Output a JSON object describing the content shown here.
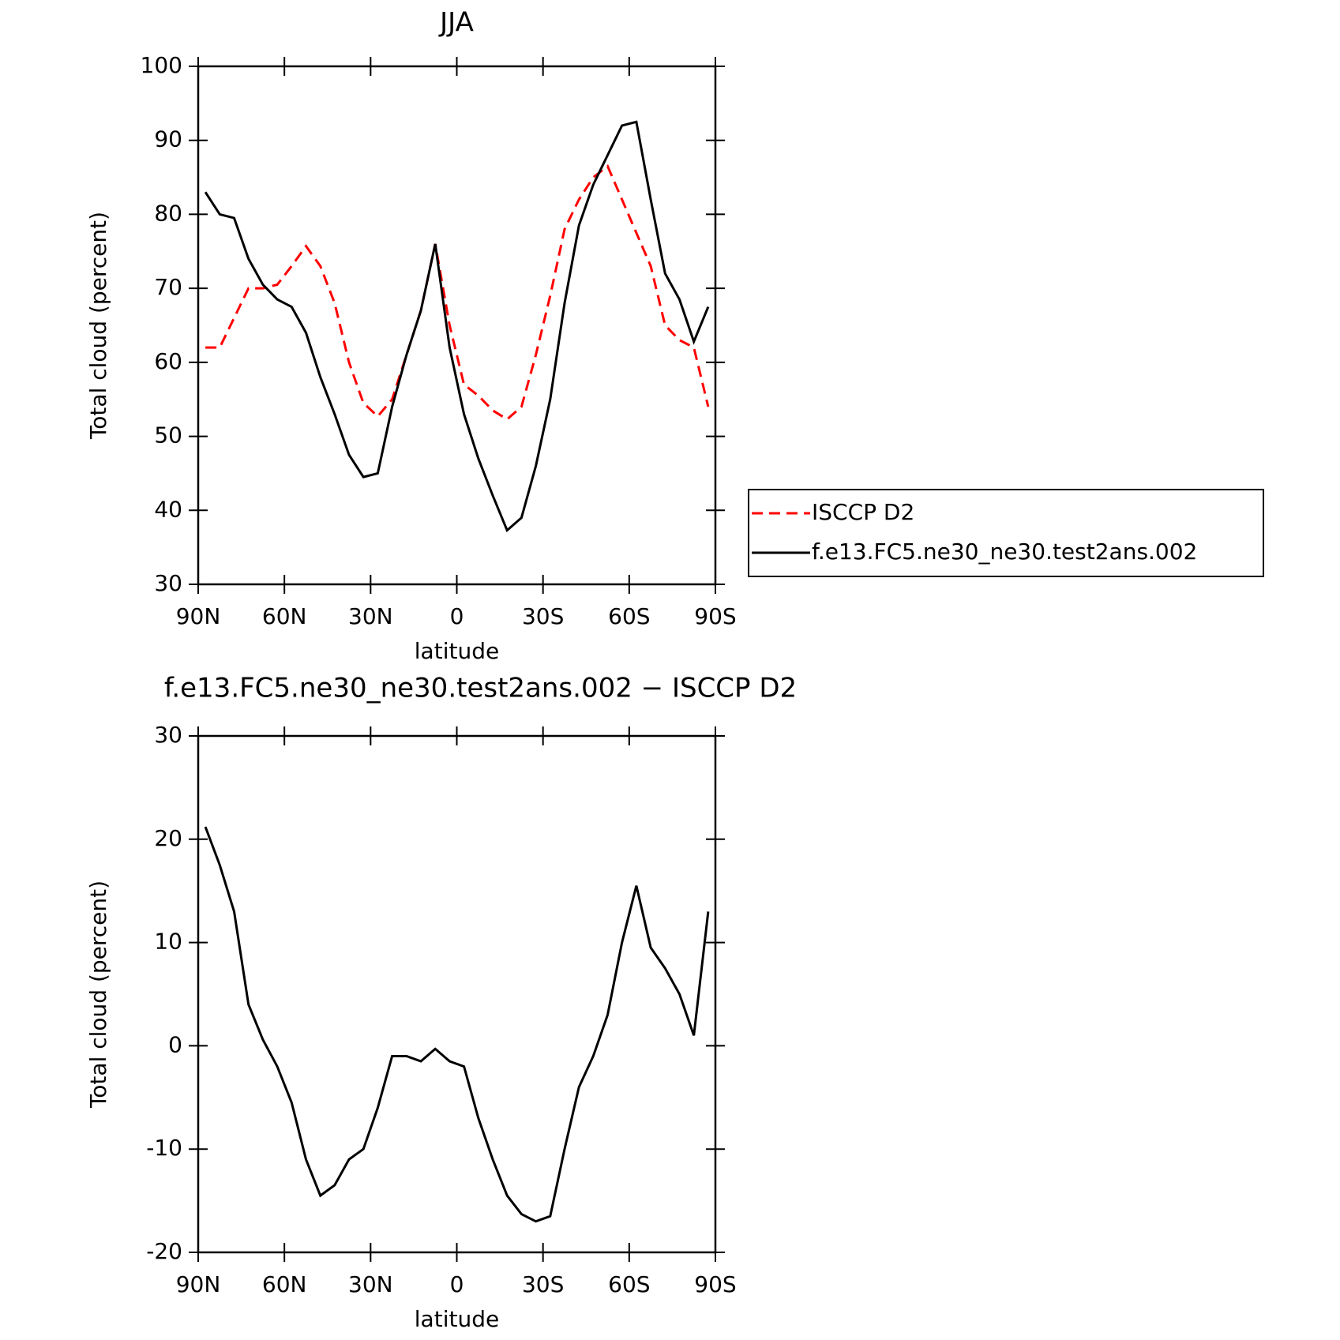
{
  "chart_data": [
    {
      "type": "line",
      "title": "JJA",
      "xlabel": "latitude",
      "ylabel": "Total cloud (percent)",
      "x": [
        87.5,
        82.5,
        77.5,
        72.5,
        67.5,
        62.5,
        57.5,
        52.5,
        47.5,
        42.5,
        37.5,
        32.5,
        27.5,
        22.5,
        17.5,
        12.5,
        7.5,
        2.5,
        -2.5,
        -7.5,
        -12.5,
        -17.5,
        -22.5,
        -27.5,
        -32.5,
        -37.5,
        -42.5,
        -47.5,
        -52.5,
        -57.5,
        -62.5,
        -67.5,
        -72.5,
        -77.5,
        -82.5,
        -87.5
      ],
      "xlim": [
        90,
        -90
      ],
      "xticks": [
        {
          "value": 90,
          "label": "90N"
        },
        {
          "value": 60,
          "label": "60N"
        },
        {
          "value": 30,
          "label": "30N"
        },
        0,
        {
          "value": -30,
          "label": "30S"
        },
        {
          "value": -60,
          "label": "60S"
        },
        {
          "value": -90,
          "label": "90S"
        }
      ],
      "ylim": [
        30,
        100
      ],
      "yticks": [
        30,
        40,
        50,
        60,
        70,
        80,
        90,
        100
      ],
      "legend": "right",
      "series": [
        {
          "name": "ISCCP D2",
          "color": "#ff0000",
          "line_style": "dashed",
          "values": [
            62,
            62,
            66,
            70,
            70,
            70.5,
            73,
            75.7,
            73,
            68,
            60,
            54.5,
            52.7,
            55,
            61,
            67,
            76,
            65,
            57,
            55.5,
            53.5,
            52.3,
            54,
            61,
            69,
            78,
            82,
            85,
            86.5,
            82,
            77.5,
            73,
            65,
            63,
            62,
            54
          ]
        },
        {
          "name": "f.e13.FC5.ne30_ne30.test2ans.002",
          "color": "#000000",
          "line_style": "solid",
          "values": [
            83,
            80,
            79.5,
            74,
            70.5,
            68.5,
            67.5,
            64,
            58,
            53,
            47.5,
            44.5,
            45,
            54,
            61,
            67,
            76,
            62,
            53,
            47,
            42,
            37.3,
            39,
            46,
            55,
            68,
            78.5,
            84,
            88,
            92,
            92.5,
            82,
            72,
            68.5,
            62.8,
            67.5
          ]
        }
      ]
    },
    {
      "type": "line",
      "title": "f.e13.FC5.ne30_ne30.test2ans.002 − ISCCP D2",
      "xlabel": "latitude",
      "ylabel": "Total cloud (percent)",
      "x": [
        87.5,
        82.5,
        77.5,
        72.5,
        67.5,
        62.5,
        57.5,
        52.5,
        47.5,
        42.5,
        37.5,
        32.5,
        27.5,
        22.5,
        17.5,
        12.5,
        7.5,
        2.5,
        -2.5,
        -7.5,
        -12.5,
        -17.5,
        -22.5,
        -27.5,
        -32.5,
        -37.5,
        -42.5,
        -47.5,
        -52.5,
        -57.5,
        -62.5,
        -67.5,
        -72.5,
        -77.5,
        -82.5,
        -87.5
      ],
      "xlim": [
        90,
        -90
      ],
      "xticks": [
        {
          "value": 90,
          "label": "90N"
        },
        {
          "value": 60,
          "label": "60N"
        },
        {
          "value": 30,
          "label": "30N"
        },
        0,
        {
          "value": -30,
          "label": "30S"
        },
        {
          "value": -60,
          "label": "60S"
        },
        {
          "value": -90,
          "label": "90S"
        }
      ],
      "ylim": [
        -20,
        30
      ],
      "yticks": [
        -20,
        -10,
        0,
        10,
        20,
        30
      ],
      "series": [
        {
          "color": "#000000",
          "line_style": "solid",
          "values": [
            21.2,
            17.5,
            13,
            4,
            0.6,
            -2,
            -5.5,
            -11,
            -14.5,
            -13.5,
            -11,
            -10,
            -6,
            -1,
            -1,
            -1.5,
            -0.3,
            -1.5,
            -2,
            -7,
            -11,
            -14.5,
            -16.3,
            -17,
            -16.5,
            -10,
            -4,
            -1,
            3,
            10,
            15.5,
            9.5,
            7.5,
            5,
            1,
            13
          ]
        }
      ]
    }
  ]
}
